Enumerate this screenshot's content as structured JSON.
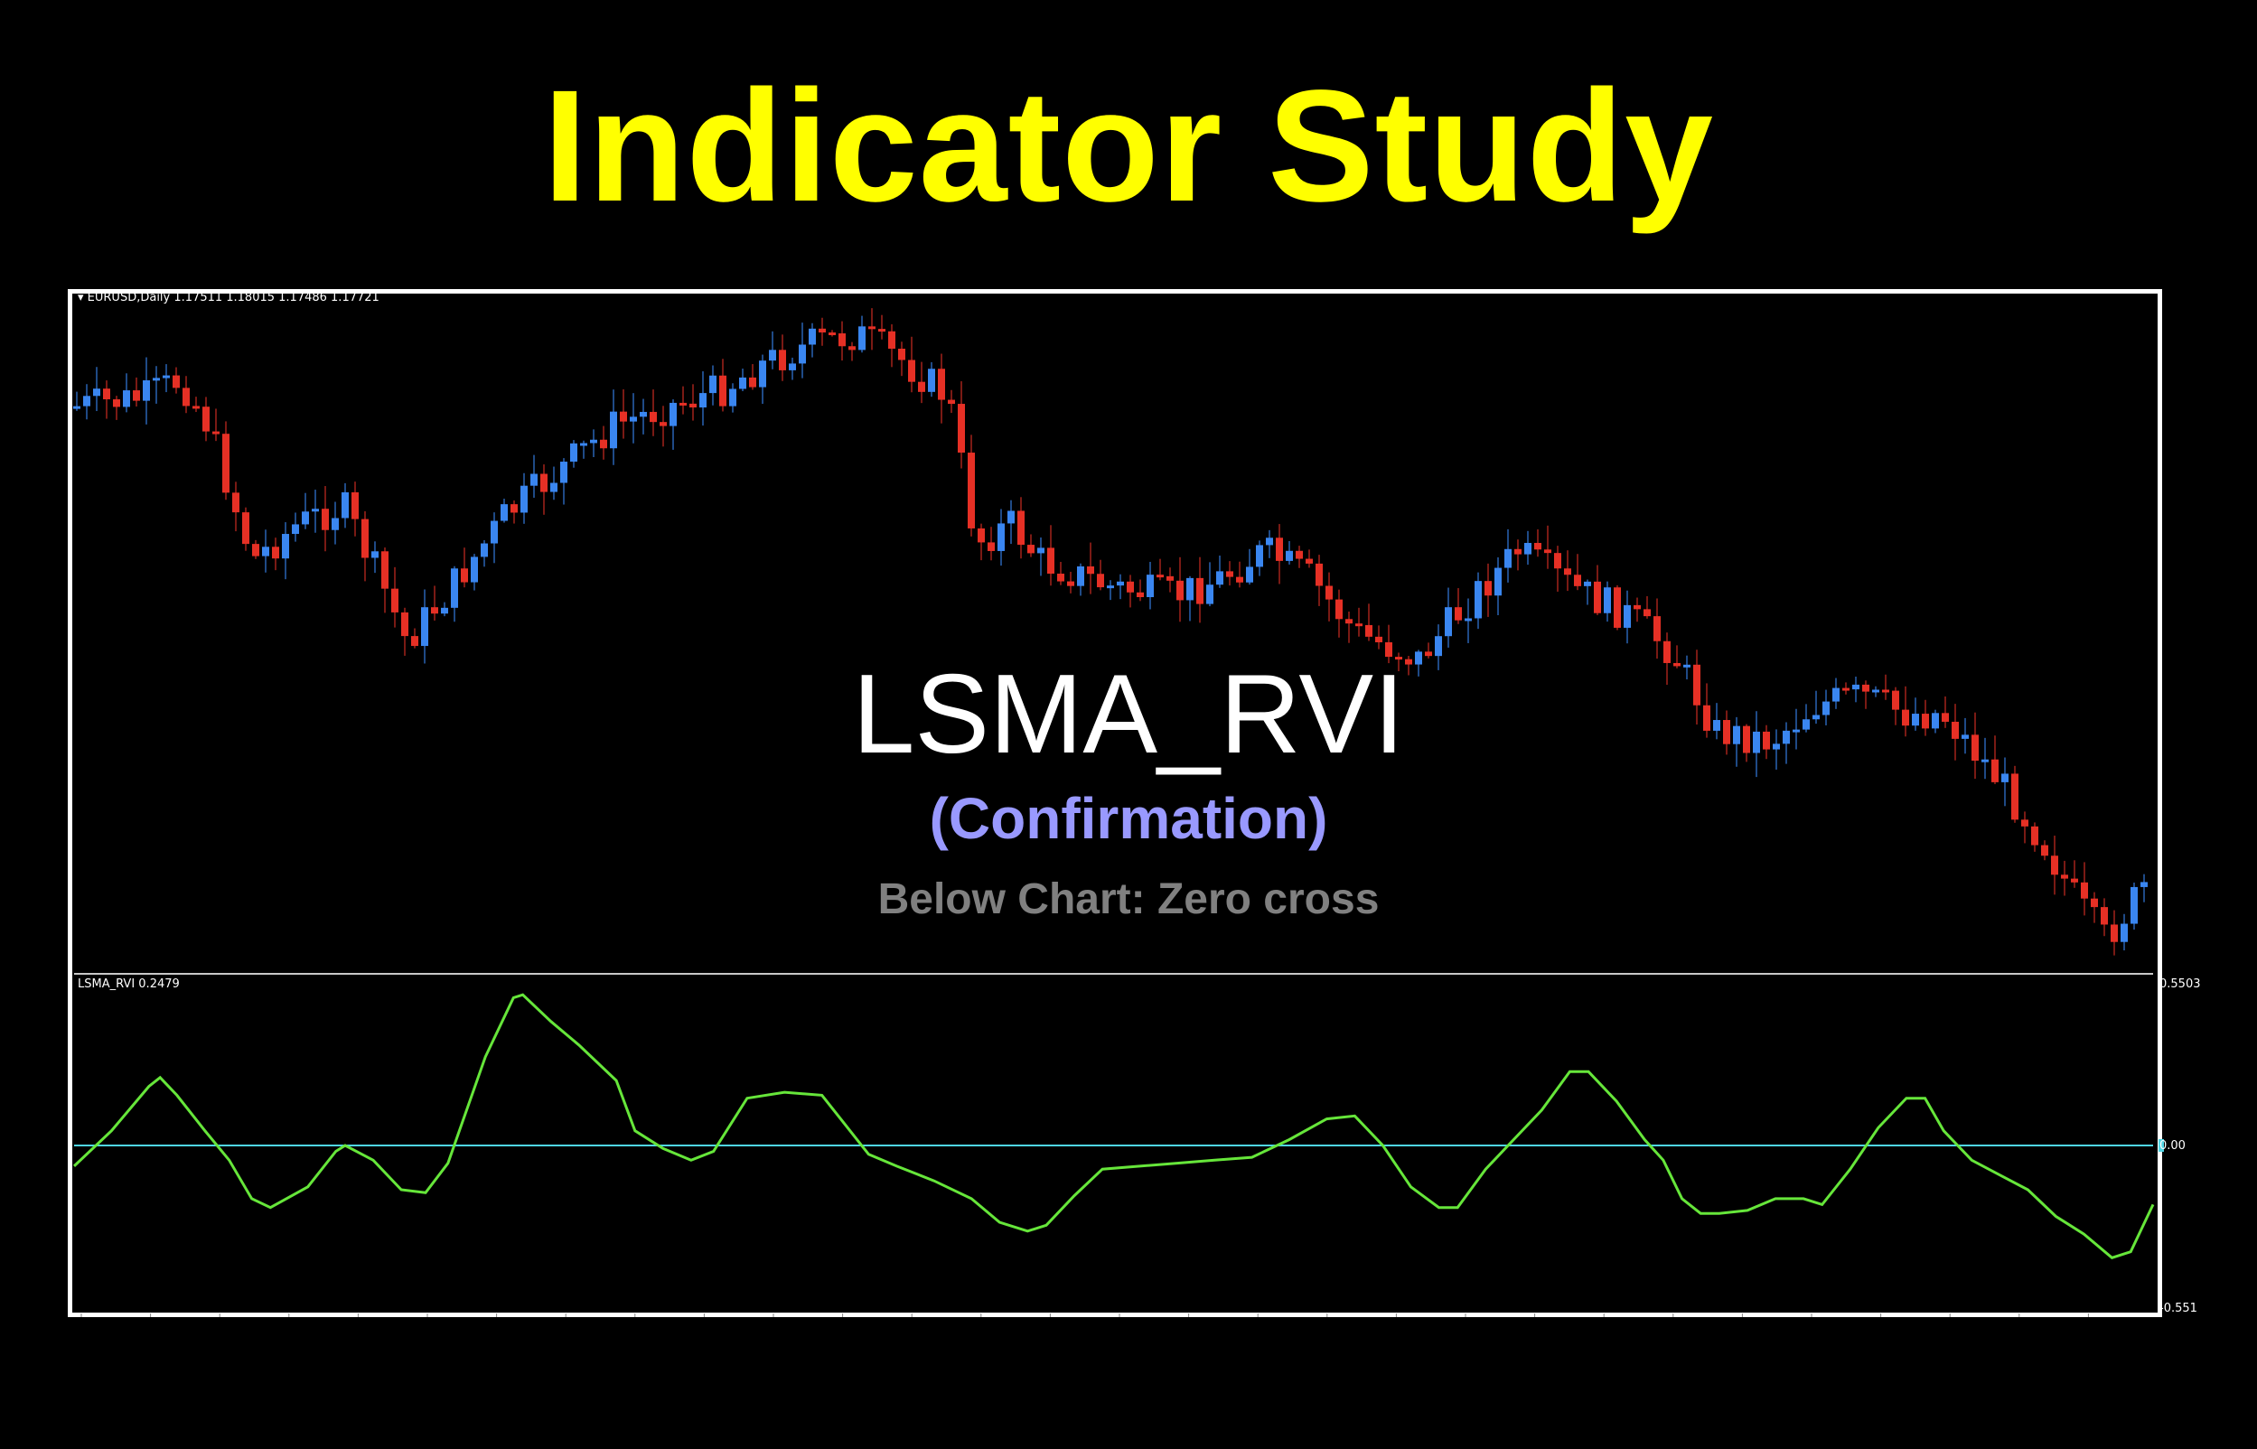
{
  "title": "Indicator Study",
  "colors": {
    "title": "#ffff00",
    "bull_candle": "#3a86f0",
    "bear_candle": "#e63025",
    "indicator_line": "#66e63a",
    "zero_line": "#4fd6e6",
    "separator": "#c8c8c8",
    "overlay_sub": "#9999ff",
    "overlay_note": "#808080"
  },
  "chart": {
    "symbol_label": "EURUSD,Daily  1.17511 1.18015 1.17486 1.17721",
    "symbol": "EURUSD",
    "timeframe": "Daily",
    "ohlc": {
      "open": "1.17511",
      "high": "1.18015",
      "low": "1.17486",
      "close": "1.17721"
    }
  },
  "overlay": {
    "name": "LSMA_RVI",
    "role": "(Confirmation)",
    "note": "Below Chart: Zero cross"
  },
  "indicator": {
    "label": "LSMA_RVI 0.2479",
    "name": "LSMA_RVI",
    "current_value": "0.2479",
    "axis_max": "0.5503",
    "axis_zero": "0.00",
    "axis_min": "-0.551"
  },
  "chart_data": [
    {
      "type": "candlestick",
      "title": "EURUSD,Daily",
      "xlabel": "",
      "ylabel": "",
      "grid": false,
      "description": "Approximate price path (close levels as screen-y anchors, lower y = higher price)",
      "price_path_anchors_y": [
        [
          85,
          450
        ],
        [
          160,
          440
        ],
        [
          200,
          420
        ],
        [
          230,
          470
        ],
        [
          280,
          620
        ],
        [
          330,
          580
        ],
        [
          380,
          560
        ],
        [
          420,
          640
        ],
        [
          450,
          710
        ],
        [
          500,
          650
        ],
        [
          560,
          570
        ],
        [
          620,
          520
        ],
        [
          680,
          470
        ],
        [
          740,
          450
        ],
        [
          800,
          430
        ],
        [
          850,
          400
        ],
        [
          900,
          380
        ],
        [
          950,
          370
        ],
        [
          1000,
          400
        ],
        [
          1050,
          440
        ],
        [
          1080,
          600
        ],
        [
          1120,
          580
        ],
        [
          1150,
          620
        ],
        [
          1230,
          650
        ],
        [
          1300,
          660
        ],
        [
          1350,
          640
        ],
        [
          1400,
          610
        ],
        [
          1450,
          640
        ],
        [
          1500,
          700
        ],
        [
          1570,
          730
        ],
        [
          1630,
          660
        ],
        [
          1680,
          610
        ],
        [
          1740,
          650
        ],
        [
          1800,
          680
        ],
        [
          1850,
          720
        ],
        [
          1900,
          810
        ],
        [
          1960,
          820
        ],
        [
          2010,
          780
        ],
        [
          2060,
          770
        ],
        [
          2110,
          790
        ],
        [
          2150,
          790
        ],
        [
          2210,
          860
        ],
        [
          2260,
          930
        ],
        [
          2300,
          1000
        ],
        [
          2330,
          1040
        ],
        [
          2360,
          1000
        ],
        [
          2380,
          970
        ]
      ],
      "last_ohlc": {
        "open": 1.17511,
        "high": 1.18015,
        "low": 1.17486,
        "close": 1.17721
      }
    },
    {
      "type": "line",
      "title": "LSMA_RVI",
      "ylim": [
        -0.551,
        0.5503
      ],
      "y_ticks": [
        0.5503,
        0.0,
        -0.551
      ],
      "reference_line": 0.0,
      "current_value": 0.2479,
      "series": [
        {
          "name": "LSMA_RVI",
          "points_xy_norm": [
            [
              0.0,
              -0.07
            ],
            [
              0.02,
              0.05
            ],
            [
              0.04,
              0.2
            ],
            [
              0.046,
              0.23
            ],
            [
              0.055,
              0.17
            ],
            [
              0.07,
              0.05
            ],
            [
              0.083,
              -0.05
            ],
            [
              0.095,
              -0.18
            ],
            [
              0.105,
              -0.21
            ],
            [
              0.125,
              -0.14
            ],
            [
              0.14,
              -0.02
            ],
            [
              0.145,
              0.0
            ],
            [
              0.16,
              -0.05
            ],
            [
              0.175,
              -0.15
            ],
            [
              0.188,
              -0.16
            ],
            [
              0.2,
              -0.06
            ],
            [
              0.22,
              0.3
            ],
            [
              0.235,
              0.5
            ],
            [
              0.24,
              0.51
            ],
            [
              0.255,
              0.42
            ],
            [
              0.27,
              0.34
            ],
            [
              0.29,
              0.22
            ],
            [
              0.3,
              0.05
            ],
            [
              0.315,
              -0.01
            ],
            [
              0.33,
              -0.05
            ],
            [
              0.342,
              -0.02
            ],
            [
              0.36,
              0.16
            ],
            [
              0.38,
              0.18
            ],
            [
              0.4,
              0.17
            ],
            [
              0.41,
              0.09
            ],
            [
              0.425,
              -0.03
            ],
            [
              0.44,
              -0.07
            ],
            [
              0.46,
              -0.12
            ],
            [
              0.48,
              -0.18
            ],
            [
              0.495,
              -0.26
            ],
            [
              0.51,
              -0.29
            ],
            [
              0.52,
              -0.27
            ],
            [
              0.535,
              -0.17
            ],
            [
              0.55,
              -0.08
            ],
            [
              0.57,
              -0.07
            ],
            [
              0.59,
              -0.06
            ],
            [
              0.61,
              -0.05
            ],
            [
              0.63,
              -0.04
            ],
            [
              0.65,
              0.02
            ],
            [
              0.67,
              0.09
            ],
            [
              0.685,
              0.1
            ],
            [
              0.7,
              0.0
            ],
            [
              0.715,
              -0.14
            ],
            [
              0.73,
              -0.21
            ],
            [
              0.74,
              -0.21
            ],
            [
              0.755,
              -0.08
            ],
            [
              0.77,
              0.02
            ],
            [
              0.785,
              0.12
            ],
            [
              0.8,
              0.25
            ],
            [
              0.81,
              0.25
            ],
            [
              0.825,
              0.15
            ],
            [
              0.84,
              0.02
            ],
            [
              0.85,
              -0.05
            ],
            [
              0.86,
              -0.18
            ],
            [
              0.87,
              -0.23
            ],
            [
              0.88,
              -0.23
            ],
            [
              0.895,
              -0.22
            ],
            [
              0.91,
              -0.18
            ],
            [
              0.925,
              -0.18
            ],
            [
              0.935,
              -0.2
            ],
            [
              0.95,
              -0.08
            ],
            [
              0.965,
              0.06
            ],
            [
              0.98,
              0.16
            ],
            [
              0.99,
              0.16
            ],
            [
              1.0,
              0.05
            ],
            [
              1.015,
              -0.05
            ],
            [
              1.03,
              -0.1
            ],
            [
              1.045,
              -0.15
            ],
            [
              1.06,
              -0.24
            ],
            [
              1.075,
              -0.3
            ],
            [
              1.09,
              -0.38
            ],
            [
              1.1,
              -0.36
            ],
            [
              1.112,
              -0.2
            ]
          ]
        }
      ]
    }
  ]
}
